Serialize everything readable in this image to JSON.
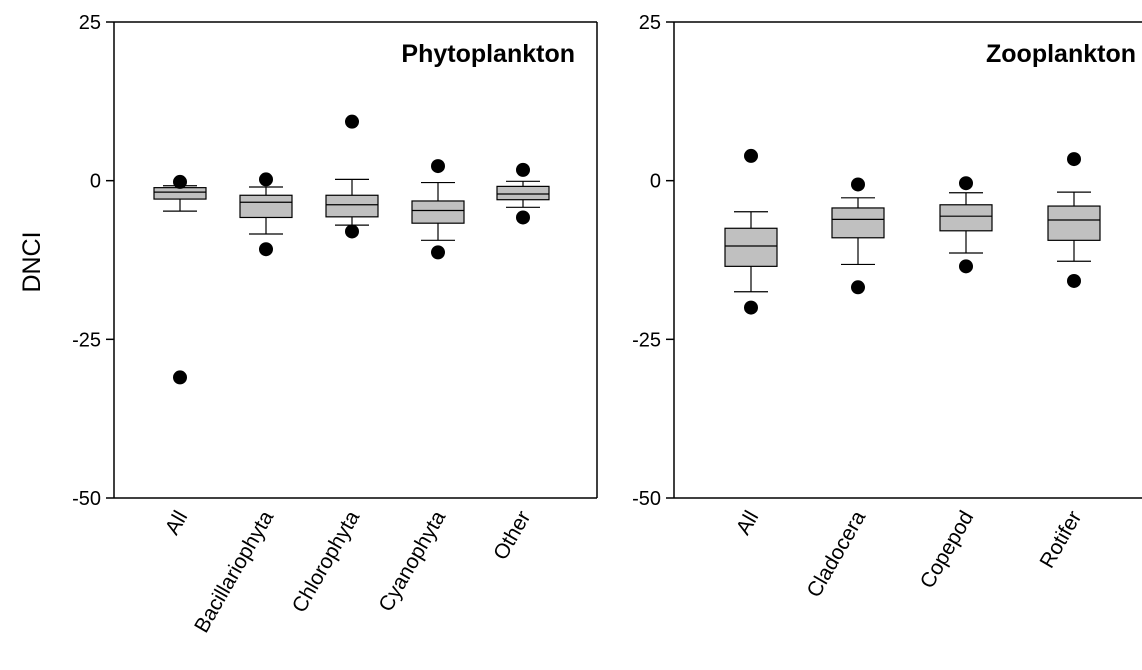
{
  "chart_data": [
    {
      "type": "box",
      "title": "Phytoplankton",
      "ylabel": "DNCI",
      "ylim": [
        -50,
        25
      ],
      "yticks": [
        "25",
        "0",
        "-25",
        "-50"
      ],
      "categories": [
        "All",
        "Bacillariophyta",
        "Chlorophyta",
        "Cyanophyta",
        "Other"
      ],
      "boxes": [
        {
          "low": -4.8,
          "q1": -2.9,
          "median": -1.8,
          "q3": -1.1,
          "high": -0.8,
          "outliers": [
            -0.2,
            -31
          ]
        },
        {
          "low": -8.4,
          "q1": -5.8,
          "median": -3.4,
          "q3": -2.3,
          "high": -1.0,
          "outliers": [
            0.2,
            -10.8
          ]
        },
        {
          "low": -7.0,
          "q1": -5.7,
          "median": -3.8,
          "q3": -2.3,
          "high": 0.2,
          "outliers": [
            9.3,
            -8.0
          ]
        },
        {
          "low": -9.4,
          "q1": -6.7,
          "median": -4.7,
          "q3": -3.2,
          "high": -0.3,
          "outliers": [
            2.3,
            -11.3
          ]
        },
        {
          "low": -4.2,
          "q1": -3.0,
          "median": -2.1,
          "q3": -0.9,
          "high": -0.1,
          "outliers": [
            1.7,
            -5.8
          ]
        }
      ]
    },
    {
      "type": "box",
      "title": "Zooplankton",
      "ylabel": "",
      "ylim": [
        -50,
        25
      ],
      "yticks": [
        "25",
        "0",
        "-25",
        "-50"
      ],
      "categories": [
        "All",
        "Cladocera",
        "Copepod",
        "Rotifer"
      ],
      "boxes": [
        {
          "low": -17.5,
          "q1": -13.5,
          "median": -10.3,
          "q3": -7.5,
          "high": -4.9,
          "outliers": [
            3.9,
            -20.0
          ]
        },
        {
          "low": -13.2,
          "q1": -9.0,
          "median": -6.1,
          "q3": -4.3,
          "high": -2.7,
          "outliers": [
            -0.6,
            -16.8
          ]
        },
        {
          "low": -11.4,
          "q1": -7.9,
          "median": -5.6,
          "q3": -3.8,
          "high": -1.9,
          "outliers": [
            -0.4,
            -13.5
          ]
        },
        {
          "low": -12.7,
          "q1": -9.4,
          "median": -6.2,
          "q3": -4.0,
          "high": -1.8,
          "outliers": [
            3.4,
            -15.8
          ]
        }
      ]
    }
  ]
}
